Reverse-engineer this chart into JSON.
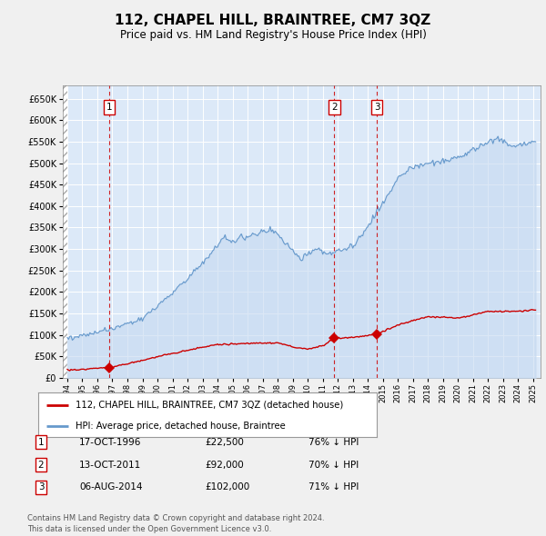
{
  "title": "112, CHAPEL HILL, BRAINTREE, CM7 3QZ",
  "subtitle": "Price paid vs. HM Land Registry's House Price Index (HPI)",
  "title_fontsize": 11,
  "subtitle_fontsize": 8.5,
  "fig_bg_color": "#f0f0f0",
  "plot_bg_color": "#dce9f8",
  "grid_color": "#ffffff",
  "sale_dates": [
    1996.79,
    2011.78,
    2014.6
  ],
  "sale_prices": [
    22500,
    92000,
    102000
  ],
  "sale_labels": [
    "1",
    "2",
    "3"
  ],
  "legend_label_red": "112, CHAPEL HILL, BRAINTREE, CM7 3QZ (detached house)",
  "legend_label_blue": "HPI: Average price, detached house, Braintree",
  "table_rows": [
    [
      "1",
      "17-OCT-1996",
      "£22,500",
      "76% ↓ HPI"
    ],
    [
      "2",
      "13-OCT-2011",
      "£92,000",
      "70% ↓ HPI"
    ],
    [
      "3",
      "06-AUG-2014",
      "£102,000",
      "71% ↓ HPI"
    ]
  ],
  "footer": "Contains HM Land Registry data © Crown copyright and database right 2024.\nThis data is licensed under the Open Government Licence v3.0.",
  "red_color": "#cc0000",
  "blue_color": "#6699cc",
  "blue_fill_color": "#c5d9f0",
  "ylim": [
    0,
    680000
  ],
  "ytick_values": [
    0,
    50000,
    100000,
    150000,
    200000,
    250000,
    300000,
    350000,
    400000,
    450000,
    500000,
    550000,
    600000,
    650000
  ],
  "xlim": [
    1993.7,
    2025.5
  ],
  "xtick_start": 1994,
  "xtick_end": 2025
}
